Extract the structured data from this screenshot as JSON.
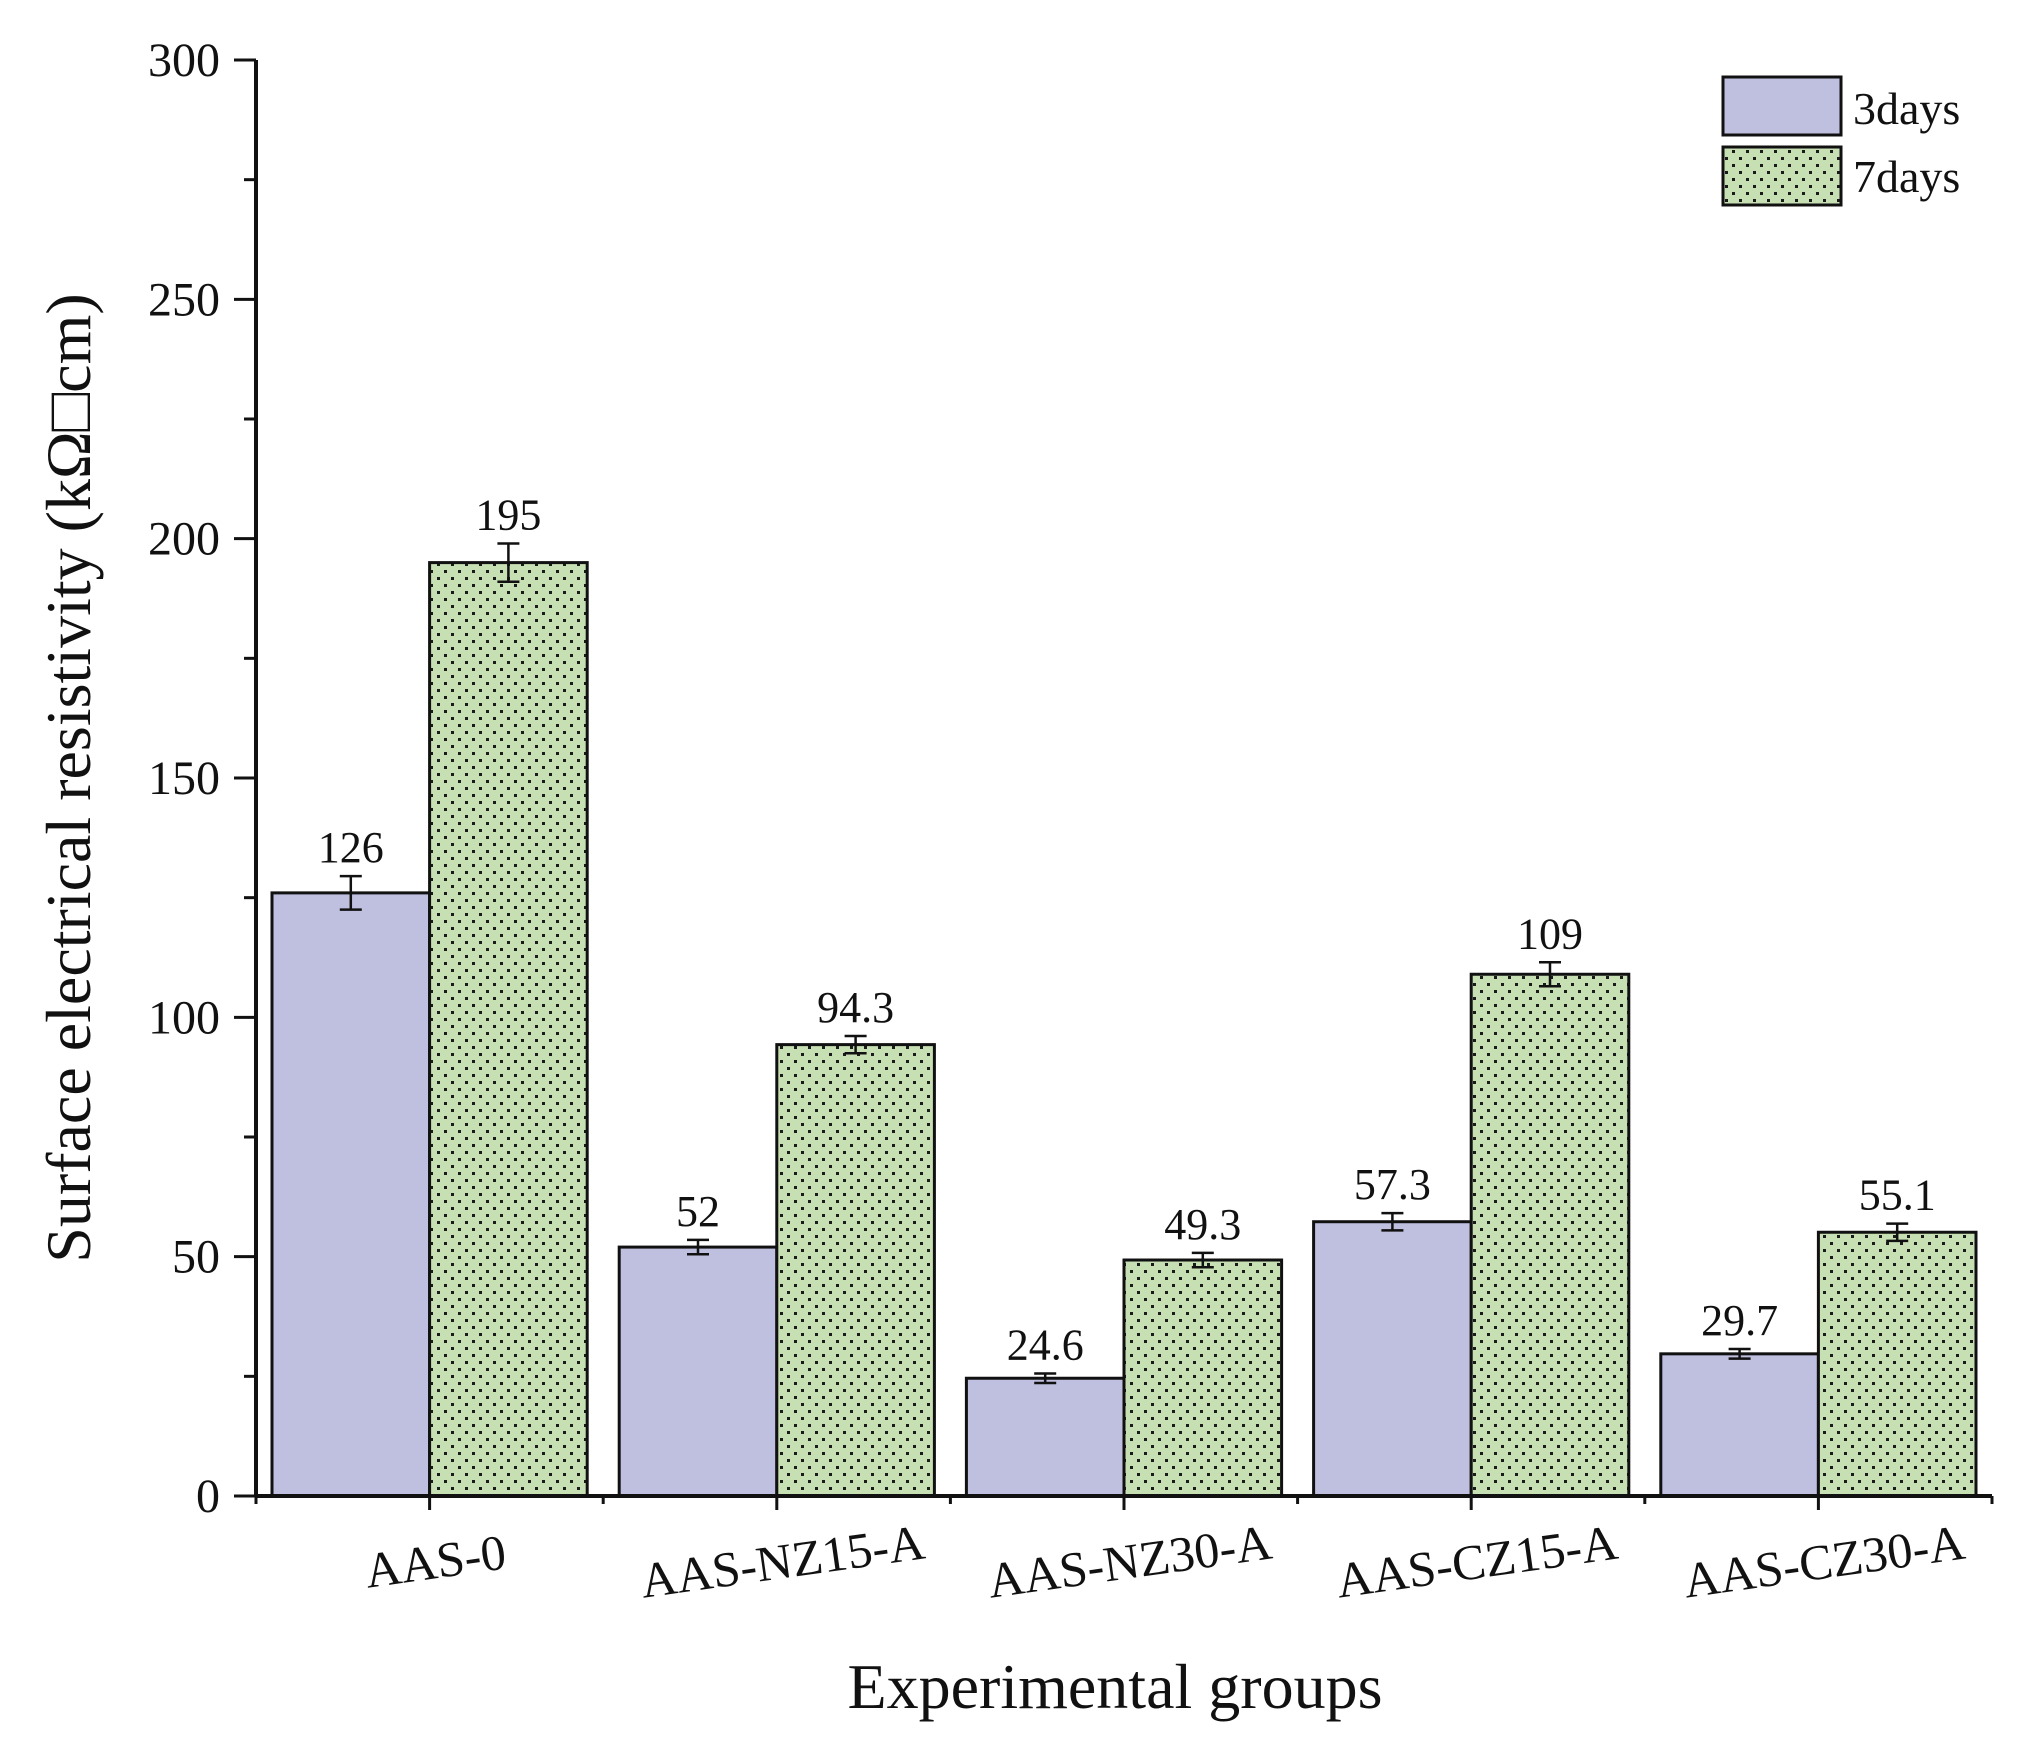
{
  "chart_data": {
    "type": "bar",
    "title": "",
    "xlabel": "Experimental groups",
    "ylabel": "Surface electrical resistivity (kΩ□cm)",
    "ylim": [
      0,
      300
    ],
    "yticks": [
      0,
      50,
      100,
      150,
      200,
      250,
      300
    ],
    "grid": false,
    "legend_position": "top-right",
    "categories": [
      "AAS-0",
      "AAS-NZ15-A",
      "AAS-NZ30-A",
      "AAS-CZ15-A",
      "AAS-CZ30-A"
    ],
    "series": [
      {
        "name": "3days",
        "values": [
          126,
          52,
          24.6,
          57.3,
          29.7
        ],
        "labels": [
          "126",
          "52",
          "24.6",
          "57.3",
          "29.7"
        ],
        "errors": [
          3.5,
          1.5,
          1.0,
          1.8,
          1.0
        ],
        "color": "#bfbfe0",
        "pattern": "solid"
      },
      {
        "name": "7days",
        "values": [
          195,
          94.3,
          49.3,
          109,
          55.1
        ],
        "labels": [
          "195",
          "94.3",
          "49.3",
          "109",
          "55.1"
        ],
        "errors": [
          4.0,
          1.8,
          1.5,
          2.5,
          1.8
        ],
        "color": "#c6e0b4",
        "pattern": "dotted"
      }
    ]
  }
}
